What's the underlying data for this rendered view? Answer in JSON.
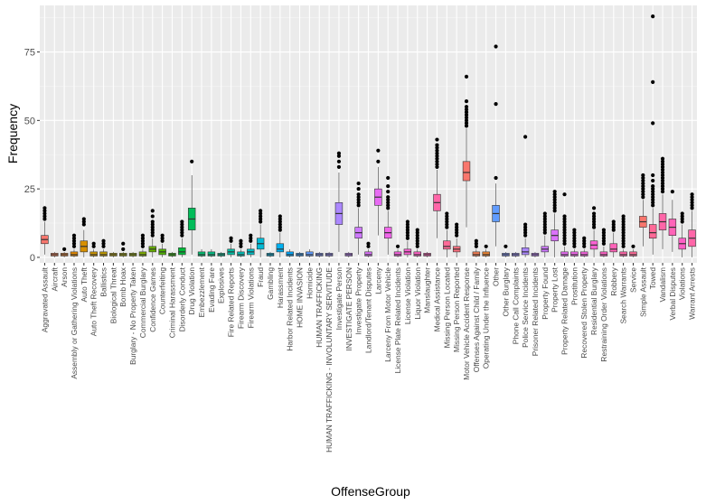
{
  "chart_data": {
    "type": "box",
    "xlabel": "OffenseGroup",
    "ylabel": "Frequency",
    "ylim": [
      -2,
      92
    ],
    "yticks": [
      0,
      25,
      50,
      75
    ],
    "grid": true,
    "legend": "none",
    "categories": [
      {
        "label": "Aggravated Assault",
        "q1": 5,
        "med": 6.5,
        "q3": 8,
        "lo": 1,
        "hi": 13,
        "out": [
          14,
          15,
          16,
          17,
          18
        ],
        "color": "#F8766D"
      },
      {
        "label": "Aircraft",
        "q1": 0.5,
        "med": 1,
        "q3": 1.5,
        "lo": 0,
        "hi": 2,
        "out": [],
        "color": "#F27D52"
      },
      {
        "label": "Arson",
        "q1": 0.5,
        "med": 1,
        "q3": 1.5,
        "lo": 0,
        "hi": 2,
        "out": [
          3
        ],
        "color": "#EA8331"
      },
      {
        "label": "Assembly or Gathering Violations",
        "q1": 0.5,
        "med": 1,
        "q3": 2,
        "lo": 0,
        "hi": 3,
        "out": [
          4,
          5,
          6,
          7,
          8
        ],
        "color": "#E38900"
      },
      {
        "label": "Auto Theft",
        "q1": 2,
        "med": 4,
        "q3": 6,
        "lo": 0,
        "hi": 10,
        "out": [
          12,
          13,
          14
        ],
        "color": "#D89000"
      },
      {
        "label": "Auto Theft Recovery",
        "q1": 0.5,
        "med": 1,
        "q3": 2,
        "lo": 0,
        "hi": 3,
        "out": [
          4,
          5
        ],
        "color": "#CD9600"
      },
      {
        "label": "Ballistics",
        "q1": 0.5,
        "med": 1,
        "q3": 2,
        "lo": 0,
        "hi": 3,
        "out": [
          4,
          5,
          6
        ],
        "color": "#C09B00"
      },
      {
        "label": "Biological Threat",
        "q1": 0.5,
        "med": 1,
        "q3": 1.5,
        "lo": 0,
        "hi": 2,
        "out": [],
        "color": "#B2A000"
      },
      {
        "label": "Bomb Hoax",
        "q1": 0.5,
        "med": 1,
        "q3": 1.5,
        "lo": 0,
        "hi": 2,
        "out": [
          3,
          5
        ],
        "color": "#A3A500"
      },
      {
        "label": "Burglary - No Property Taken",
        "q1": 0.5,
        "med": 1,
        "q3": 1.5,
        "lo": 0,
        "hi": 2,
        "out": [],
        "color": "#93AA00"
      },
      {
        "label": "Commercial Burglary",
        "q1": 0.5,
        "med": 1,
        "q3": 2,
        "lo": 0,
        "hi": 3,
        "out": [
          4,
          5,
          6,
          7,
          8
        ],
        "color": "#7FAE00"
      },
      {
        "label": "Confidence Games",
        "q1": 2,
        "med": 3,
        "q3": 4,
        "lo": 0,
        "hi": 7,
        "out": [
          8,
          9,
          10,
          11,
          12,
          13,
          15,
          17
        ],
        "color": "#68B100"
      },
      {
        "label": "Counterfeiting",
        "q1": 1,
        "med": 2,
        "q3": 3,
        "lo": 0,
        "hi": 5,
        "out": [
          6,
          7,
          8
        ],
        "color": "#4FB400"
      },
      {
        "label": "Criminal Harassment",
        "q1": 0.5,
        "med": 1,
        "q3": 1.5,
        "lo": 0,
        "hi": 2,
        "out": [],
        "color": "#2AB700"
      },
      {
        "label": "Disorderly Conduct",
        "q1": 1,
        "med": 2,
        "q3": 3.5,
        "lo": 0,
        "hi": 7,
        "out": [
          8,
          9,
          10,
          11,
          12,
          13
        ],
        "color": "#00BA38"
      },
      {
        "label": "Drug Violation",
        "q1": 10,
        "med": 14,
        "q3": 18,
        "lo": 1,
        "hi": 30,
        "out": [
          35
        ],
        "color": "#00BC59"
      },
      {
        "label": "Embezzlement",
        "q1": 0.5,
        "med": 1,
        "q3": 2,
        "lo": 0,
        "hi": 3,
        "out": [],
        "color": "#00BE70"
      },
      {
        "label": "Evading Fare",
        "q1": 0.5,
        "med": 1,
        "q3": 2,
        "lo": 0,
        "hi": 3,
        "out": [],
        "color": "#00BF84"
      },
      {
        "label": "Explosives",
        "q1": 0.5,
        "med": 1,
        "q3": 1.5,
        "lo": 0,
        "hi": 2,
        "out": [],
        "color": "#00C096"
      },
      {
        "label": "Fire Related Reports",
        "q1": 1,
        "med": 2,
        "q3": 3,
        "lo": 0,
        "hi": 5,
        "out": [
          6,
          7
        ],
        "color": "#00C0A7"
      },
      {
        "label": "Firearm Discovery",
        "q1": 0.5,
        "med": 1,
        "q3": 2,
        "lo": 0,
        "hi": 3,
        "out": [
          4,
          5,
          6
        ],
        "color": "#00BFB7"
      },
      {
        "label": "Firearm Violations",
        "q1": 1,
        "med": 2,
        "q3": 3,
        "lo": 0,
        "hi": 5,
        "out": [
          6,
          7,
          8
        ],
        "color": "#00BDC6"
      },
      {
        "label": "Fraud",
        "q1": 3,
        "med": 5,
        "q3": 7,
        "lo": 0,
        "hi": 12,
        "out": [
          13,
          14,
          15,
          16,
          17
        ],
        "color": "#00BAD5"
      },
      {
        "label": "Gambling",
        "q1": 0.5,
        "med": 1,
        "q3": 1.5,
        "lo": 0,
        "hi": 2,
        "out": [],
        "color": "#00B6E3"
      },
      {
        "label": "Harassment",
        "q1": 2,
        "med": 3,
        "q3": 5,
        "lo": 0,
        "hi": 9,
        "out": [
          10,
          11,
          12,
          13,
          14,
          15
        ],
        "color": "#00B0F0"
      },
      {
        "label": "Harbor Related Incidents",
        "q1": 0.5,
        "med": 1,
        "q3": 2,
        "lo": 0,
        "hi": 3,
        "out": [],
        "color": "#00A9FF"
      },
      {
        "label": "HOME INVASION",
        "q1": 0.5,
        "med": 1,
        "q3": 1.5,
        "lo": 0,
        "hi": 2,
        "out": [],
        "color": "#35A2FF"
      },
      {
        "label": "Homicide",
        "q1": 0.5,
        "med": 1,
        "q3": 2,
        "lo": 0,
        "hi": 3,
        "out": [],
        "color": "#619CFF"
      },
      {
        "label": "HUMAN TRAFFICKING",
        "q1": 0.5,
        "med": 1,
        "q3": 1.5,
        "lo": 0,
        "hi": 2,
        "out": [],
        "color": "#7F96FF"
      },
      {
        "label": "HUMAN TRAFFICKING - INVOLUNTARY SERVITUDE",
        "q1": 0.5,
        "med": 1,
        "q3": 1.5,
        "lo": 0,
        "hi": 2,
        "out": [],
        "color": "#978FFF"
      },
      {
        "label": "Investigate Person",
        "q1": 12,
        "med": 16,
        "q3": 20,
        "lo": 2,
        "hi": 31,
        "out": [
          33,
          35,
          37,
          38
        ],
        "color": "#AC88FF"
      },
      {
        "label": "INVESTIGATE PERSON",
        "q1": 0.5,
        "med": 1,
        "q3": 1.5,
        "lo": 0,
        "hi": 2,
        "out": [],
        "color": "#BE80FF"
      },
      {
        "label": "Investigate Property",
        "q1": 7,
        "med": 9,
        "q3": 11,
        "lo": 1,
        "hi": 18,
        "out": [
          19,
          20,
          21,
          22,
          23,
          25,
          27
        ],
        "color": "#CE79FF"
      },
      {
        "label": "Landlord/Tenant Disputes",
        "q1": 0.5,
        "med": 1,
        "q3": 2,
        "lo": 0,
        "hi": 3,
        "out": [
          4,
          5
        ],
        "color": "#DB72FB"
      },
      {
        "label": "Larceny",
        "q1": 19,
        "med": 22,
        "q3": 25,
        "lo": 8,
        "hi": 33,
        "out": [
          35,
          39
        ],
        "color": "#E76BF3"
      },
      {
        "label": "Larceny From Motor Vehicle",
        "q1": 7,
        "med": 9,
        "q3": 11,
        "lo": 1,
        "hi": 17,
        "out": [
          18,
          19,
          20,
          21,
          22,
          24,
          26,
          29
        ],
        "color": "#F066EA"
      },
      {
        "label": "License Plate Related Incidents",
        "q1": 0.5,
        "med": 1,
        "q3": 2,
        "lo": 0,
        "hi": 3,
        "out": [
          4
        ],
        "color": "#F763DF"
      },
      {
        "label": "License Violation",
        "q1": 1,
        "med": 2,
        "q3": 3,
        "lo": 0,
        "hi": 6,
        "out": [
          7,
          8,
          9,
          10,
          11,
          12,
          13
        ],
        "color": "#FC61D4"
      },
      {
        "label": "Liquor Violation",
        "q1": 0.5,
        "med": 1,
        "q3": 2,
        "lo": 0,
        "hi": 3,
        "out": [
          4,
          5,
          6,
          7,
          8,
          9,
          10
        ],
        "color": "#FF61C6"
      },
      {
        "label": "Manslaughter",
        "q1": 0.5,
        "med": 1,
        "q3": 1.5,
        "lo": 0,
        "hi": 2,
        "out": [],
        "color": "#FF63B8"
      },
      {
        "label": "Medical Assistance",
        "q1": 17,
        "med": 20,
        "q3": 23,
        "lo": 7,
        "hi": 32,
        "out": [
          33,
          34,
          35,
          36,
          37,
          38,
          39,
          40,
          41,
          43
        ],
        "color": "#FF66A8"
      },
      {
        "label": "Missing Person Located",
        "q1": 3,
        "med": 4,
        "q3": 6,
        "lo": 0,
        "hi": 10,
        "out": [
          11,
          12,
          13,
          14,
          15,
          16
        ],
        "color": "#FF6A98"
      },
      {
        "label": "Missing Person Reported",
        "q1": 2,
        "med": 3,
        "q3": 4,
        "lo": 0,
        "hi": 7,
        "out": [
          8,
          9,
          10,
          11,
          12
        ],
        "color": "#FC7080"
      },
      {
        "label": "Motor Vehicle Accident Response",
        "q1": 28,
        "med": 31,
        "q3": 35,
        "lo": 11,
        "hi": 47,
        "out": [
          48,
          49,
          50,
          51,
          52,
          53,
          54,
          55,
          57,
          66
        ],
        "color": "#F8766D"
      },
      {
        "label": "Offenses Against Child / Family",
        "q1": 0.5,
        "med": 1,
        "q3": 2,
        "lo": 0,
        "hi": 3,
        "out": [
          4,
          5,
          6
        ],
        "color": "#F27D52"
      },
      {
        "label": "Operating Under the Influence",
        "q1": 0.5,
        "med": 1,
        "q3": 2,
        "lo": 0,
        "hi": 3,
        "out": [
          4
        ],
        "color": "#EA8331"
      },
      {
        "label": "Other",
        "q1": 13,
        "med": 16,
        "q3": 19,
        "lo": 4,
        "hi": 27,
        "out": [
          29,
          56,
          77
        ],
        "color": "#619CFF"
      },
      {
        "label": "Other Burglary",
        "q1": 0.5,
        "med": 1,
        "q3": 1.5,
        "lo": 0,
        "hi": 2,
        "out": [
          4
        ],
        "color": "#7F96FF"
      },
      {
        "label": "Phone Call Complaints",
        "q1": 0.5,
        "med": 1,
        "q3": 1.5,
        "lo": 0,
        "hi": 2,
        "out": [],
        "color": "#978FFF"
      },
      {
        "label": "Police Service Incidents",
        "q1": 1,
        "med": 2,
        "q3": 3.5,
        "lo": 0,
        "hi": 7,
        "out": [
          8,
          9,
          10,
          11,
          12,
          44
        ],
        "color": "#AC88FF"
      },
      {
        "label": "Prisoner Related Incidents",
        "q1": 0.5,
        "med": 1,
        "q3": 1.5,
        "lo": 0,
        "hi": 2,
        "out": [],
        "color": "#BE80FF"
      },
      {
        "label": "Property Found",
        "q1": 2,
        "med": 3,
        "q3": 4,
        "lo": 0,
        "hi": 8,
        "out": [
          9,
          10,
          11,
          12,
          13,
          14,
          15,
          16
        ],
        "color": "#CE79FF"
      },
      {
        "label": "Property Lost",
        "q1": 6,
        "med": 8,
        "q3": 10,
        "lo": 0,
        "hi": 16,
        "out": [
          17,
          18,
          19,
          20,
          21,
          22,
          23,
          24
        ],
        "color": "#DB72FB"
      },
      {
        "label": "Property Related Damage",
        "q1": 0.5,
        "med": 1,
        "q3": 2,
        "lo": 0,
        "hi": 4,
        "out": [
          5,
          6,
          7,
          8,
          9,
          10,
          11,
          12,
          13,
          14,
          15,
          23
        ],
        "color": "#E76BF3"
      },
      {
        "label": "Prostitution",
        "q1": 0.5,
        "med": 1,
        "q3": 2,
        "lo": 0,
        "hi": 3,
        "out": [
          4,
          5,
          6,
          7,
          8,
          9,
          10
        ],
        "color": "#F066EA"
      },
      {
        "label": "Recovered Stolen Property",
        "q1": 0.5,
        "med": 1,
        "q3": 2,
        "lo": 0,
        "hi": 3,
        "out": [
          4,
          5,
          6,
          7
        ],
        "color": "#F763DF"
      },
      {
        "label": "Residential Burglary",
        "q1": 3,
        "med": 4.5,
        "q3": 6,
        "lo": 0,
        "hi": 10,
        "out": [
          11,
          12,
          13,
          14,
          15,
          16,
          18
        ],
        "color": "#FC61D4"
      },
      {
        "label": "Restraining Order Violations",
        "q1": 0.5,
        "med": 1,
        "q3": 2,
        "lo": 0,
        "hi": 4,
        "out": [
          5,
          6,
          7,
          8,
          9,
          10
        ],
        "color": "#FF61C6"
      },
      {
        "label": "Robbery",
        "q1": 2,
        "med": 3,
        "q3": 5,
        "lo": 0,
        "hi": 9,
        "out": [
          10,
          11,
          12,
          13
        ],
        "color": "#FF63B8"
      },
      {
        "label": "Search Warrants",
        "q1": 0.5,
        "med": 1,
        "q3": 2,
        "lo": 0,
        "hi": 3,
        "out": [
          4,
          5,
          6,
          7,
          8,
          9,
          10,
          11,
          12,
          13,
          14,
          15
        ],
        "color": "#FF66A8"
      },
      {
        "label": "Service",
        "q1": 0.5,
        "med": 1,
        "q3": 2,
        "lo": 0,
        "hi": 3,
        "out": [
          4
        ],
        "color": "#FF6A98"
      },
      {
        "label": "Simple Assault",
        "q1": 11,
        "med": 13,
        "q3": 15,
        "lo": 4,
        "hi": 21,
        "out": [
          22,
          23,
          24,
          25,
          26,
          27,
          28,
          29,
          30
        ],
        "color": "#F8766D"
      },
      {
        "label": "Towed",
        "q1": 7,
        "med": 9,
        "q3": 12,
        "lo": 1,
        "hi": 18,
        "out": [
          19,
          20,
          21,
          22,
          23,
          24,
          25,
          26,
          28,
          30,
          49,
          64,
          88
        ],
        "color": "#FF6A98"
      },
      {
        "label": "Vandalism",
        "q1": 10,
        "med": 13,
        "q3": 16,
        "lo": 3,
        "hi": 23,
        "out": [
          24,
          25,
          26,
          27,
          28,
          29,
          30,
          31,
          32,
          33,
          34,
          35,
          36
        ],
        "color": "#FF66A8"
      },
      {
        "label": "Verbal Disputes",
        "q1": 8,
        "med": 11,
        "q3": 14,
        "lo": 2,
        "hi": 21,
        "out": [
          24
        ],
        "color": "#FF63B8"
      },
      {
        "label": "Violations",
        "q1": 3,
        "med": 5,
        "q3": 7,
        "lo": 0,
        "hi": 12,
        "out": [
          13,
          14,
          15,
          16
        ],
        "color": "#FF61C6"
      },
      {
        "label": "Warrant Arrests",
        "q1": 4,
        "med": 7,
        "q3": 10,
        "lo": 0,
        "hi": 17,
        "out": [
          18,
          19,
          20,
          21,
          22,
          23
        ],
        "color": "#FF66A8"
      }
    ]
  }
}
